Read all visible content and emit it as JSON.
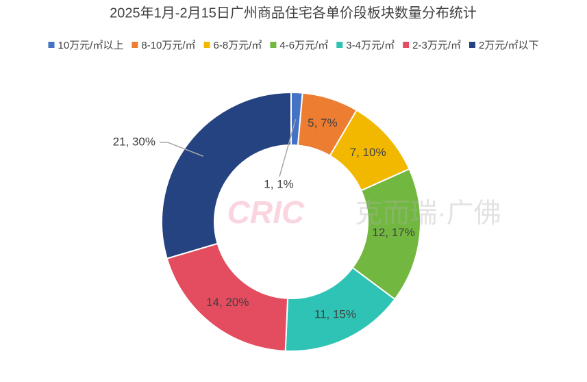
{
  "chart_data": {
    "type": "donut",
    "title": "2025年1月-2月15日广州商品住宅各单价段板块数量分布统计",
    "categories": [
      "10万元/㎡以上",
      "8-10万元/㎡",
      "6-8万元/㎡",
      "4-6万元/㎡",
      "3-4万元/㎡",
      "2-3万元/㎡",
      "2万元/㎡以下"
    ],
    "values": [
      1,
      5,
      7,
      12,
      11,
      14,
      21
    ],
    "value_labels": [
      "1, 1%",
      "5, 7%",
      "7, 10%",
      "12, 17%",
      "11, 15%",
      "14, 20%",
      "21, 30%"
    ],
    "colors": [
      "#4472c4",
      "#ed7d31",
      "#f2b800",
      "#72b840",
      "#2ec3b4",
      "#e44c5f",
      "#254380"
    ],
    "legend": "top",
    "watermark": [
      "CRIC",
      "克而瑞·广佛"
    ]
  }
}
